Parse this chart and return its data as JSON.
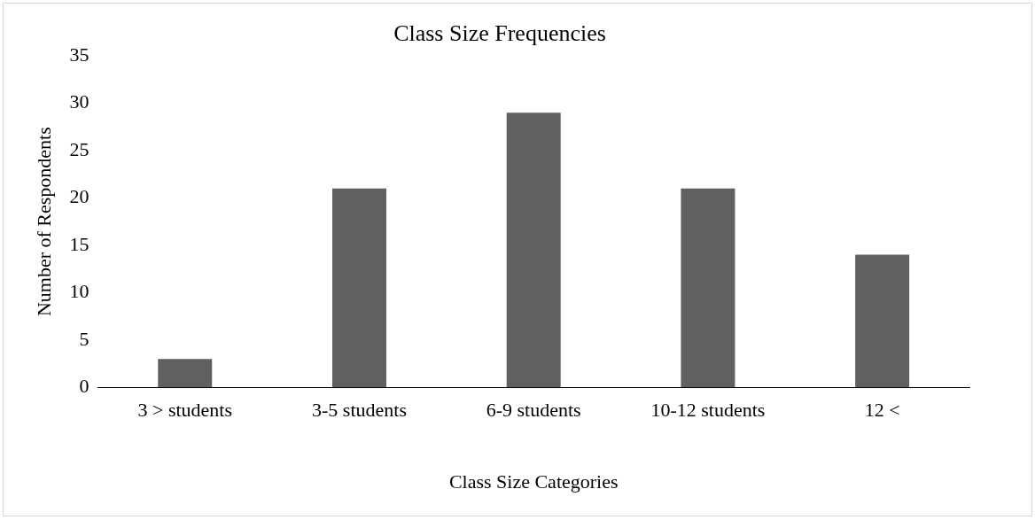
{
  "chart_data": {
    "type": "bar",
    "title": "Class Size Frequencies",
    "xlabel": "Class Size Categories",
    "ylabel": "Number of Respondents",
    "categories": [
      "3 > students",
      "3-5 students",
      "6-9 students",
      "10-12 students",
      "12 <"
    ],
    "values": [
      3,
      21,
      29,
      21,
      14
    ],
    "color": "#606060",
    "ylim": [
      0,
      35
    ],
    "yticks": [
      0,
      5,
      10,
      15,
      20,
      25,
      30,
      35
    ],
    "grid": false,
    "legend": false
  }
}
